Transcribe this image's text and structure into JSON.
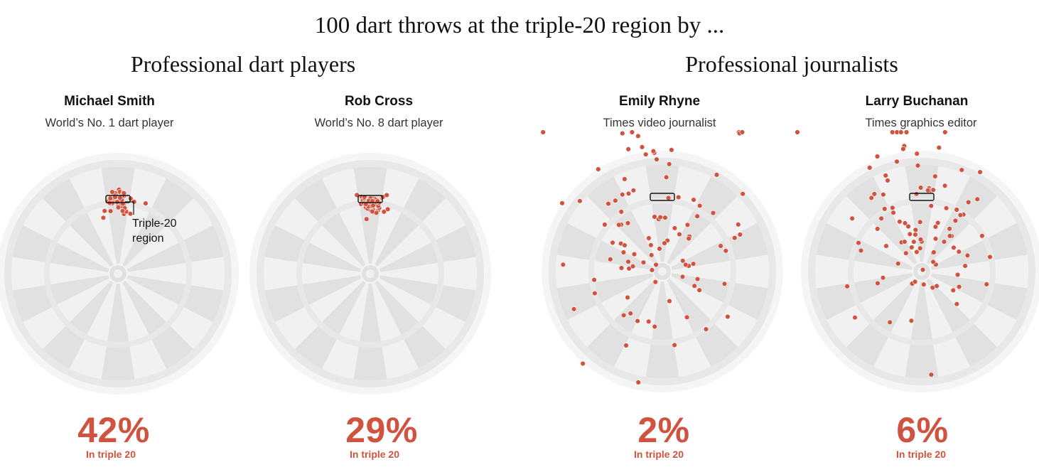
{
  "title": "100 dart throws at the triple-20 region by ...",
  "groups": [
    "Professional dart players",
    "Professional journalists"
  ],
  "annotation": "Triple-20\nregion",
  "colors": {
    "dot": "#d0533f",
    "dot_stroke": "#ffffff",
    "segment_dark": "#e1e1e1",
    "segment_light": "#f1f1f1",
    "ring": "#e8e8e8",
    "outer_rim": "#f5f5f5",
    "text_accent": "#d0533f"
  },
  "chart_data": {
    "type": "scatter",
    "throws_per_player": 100,
    "target": "triple 20",
    "players": [
      {
        "name": "Michael Smith",
        "description": "World’s No. 1 dart player",
        "group": "Professional dart players",
        "percent_label": "42%",
        "percent_in_triple_20": 42,
        "caption": "In triple 20",
        "throws_shown": 60
      },
      {
        "name": "Rob Cross",
        "description": "World’s No. 8 dart player",
        "group": "Professional dart players",
        "percent_label": "29%",
        "percent_in_triple_20": 29,
        "caption": "In triple 20",
        "throws_shown": 60
      },
      {
        "name": "Emily Rhyne",
        "description": "Times video journalist",
        "group": "Professional journalists",
        "percent_label": "2%",
        "percent_in_triple_20": 2,
        "caption": "In triple 20",
        "throws_shown": 100
      },
      {
        "name": "Larry Buchanan",
        "description": "Times graphics editor",
        "group": "Professional journalists",
        "percent_label": "6%",
        "percent_in_triple_20": 6,
        "caption": "In triple 20",
        "throws_shown": 100
      }
    ]
  }
}
